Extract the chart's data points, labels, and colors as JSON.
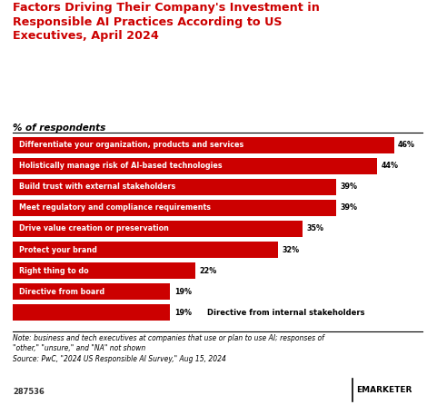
{
  "title": "Factors Driving Their Company's Investment in\nResponsible AI Practices According to US\nExecutives, April 2024",
  "subtitle": "% of respondents",
  "categories": [
    "Differentiate your organization, products and services",
    "Holistically manage risk of AI-based technologies",
    "Build trust with external stakeholders",
    "Meet regulatory and compliance requirements",
    "Drive value creation or preservation",
    "Protect your brand",
    "Right thing to do",
    "Directive from board",
    ""
  ],
  "labels_right": [
    "",
    "",
    "",
    "",
    "",
    "",
    "",
    "",
    "Directive from internal stakeholders"
  ],
  "values": [
    46,
    44,
    39,
    39,
    35,
    32,
    22,
    19,
    19
  ],
  "bar_color": "#cc0000",
  "title_color": "#cc0000",
  "note": "Note: business and tech executives at companies that use or plan to use AI; responses of\n\"other,\" \"unsure,\" and \"NA\" not shown\nSource: PwC, \"2024 US Responsible AI Survey,\" Aug 15, 2024",
  "footnote_id": "287536",
  "background_color": "#ffffff"
}
